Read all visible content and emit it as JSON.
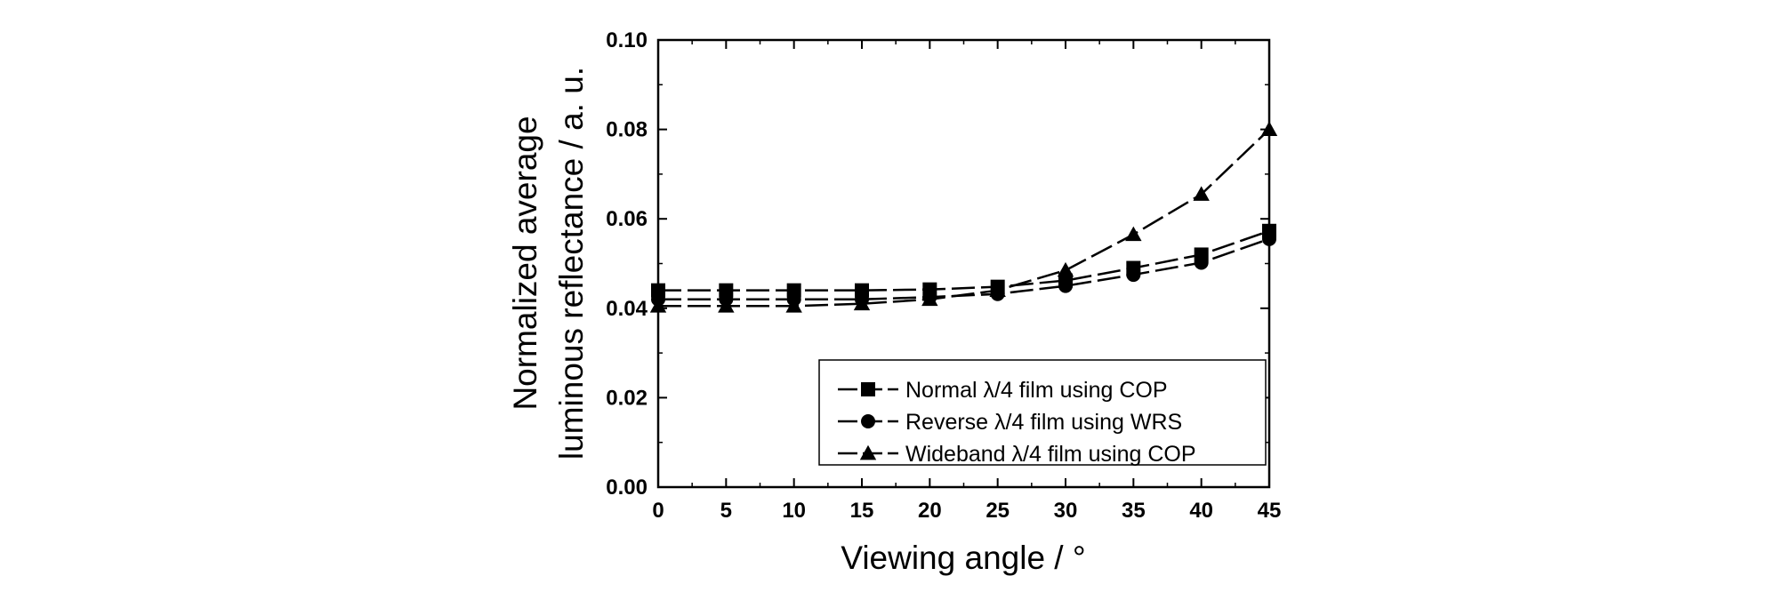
{
  "chart_data": {
    "type": "line",
    "xlabel": "Viewing angle / °",
    "ylabel_lines": [
      "Normalized average",
      "luminous reflectance / a. u."
    ],
    "xlim": [
      0,
      45
    ],
    "ylim": [
      0.0,
      0.1
    ],
    "xticks": [
      "0",
      "5",
      "10",
      "15",
      "20",
      "25",
      "30",
      "35",
      "40",
      "45"
    ],
    "yticks": [
      "0.00",
      "0.02",
      "0.04",
      "0.06",
      "0.08",
      "0.10"
    ],
    "grid": false,
    "legend_position": "bottom-right",
    "x": [
      0,
      5,
      10,
      15,
      20,
      25,
      30,
      35,
      40,
      45
    ],
    "series": [
      {
        "name": "Normal λ/4 film using COP",
        "marker": "square",
        "values": [
          0.044,
          0.044,
          0.044,
          0.044,
          0.0442,
          0.0448,
          0.0462,
          0.049,
          0.052,
          0.0573
        ]
      },
      {
        "name": "Reverse λ/4 film using WRS",
        "marker": "circle",
        "values": [
          0.042,
          0.042,
          0.042,
          0.042,
          0.0425,
          0.0432,
          0.045,
          0.0475,
          0.0502,
          0.0555
        ]
      },
      {
        "name": "Wideband λ/4 film using COP",
        "marker": "triangle",
        "values": [
          0.0405,
          0.0405,
          0.0405,
          0.041,
          0.042,
          0.044,
          0.0485,
          0.0565,
          0.0655,
          0.08
        ]
      }
    ]
  }
}
